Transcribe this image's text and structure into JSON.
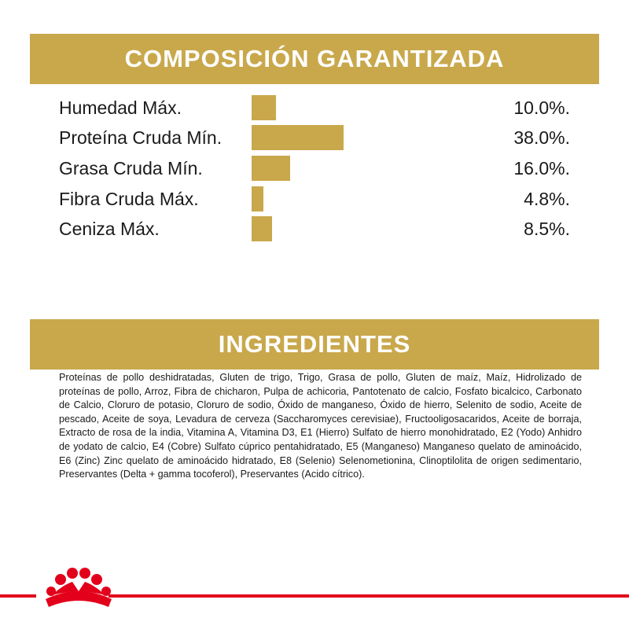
{
  "chart_data": {
    "type": "bar",
    "title": "COMPOSICIÓN GARANTIZADA",
    "categories": [
      "Humedad Máx.",
      "Proteína Cruda Mín.",
      "Grasa Cruda Mín.",
      "Fibra Cruda Máx.",
      "Ceniza Máx."
    ],
    "values": [
      10.0,
      38.0,
      16.0,
      4.8,
      8.5
    ],
    "value_labels": [
      "10.0%.",
      "38.0%.",
      "16.0%.",
      "4.8%.",
      "8.5%."
    ],
    "color": "#c9a84c"
  },
  "ingredients": {
    "title": "INGREDIENTES",
    "text": "Proteínas de pollo deshidratadas, Gluten de trigo, Trigo, Grasa de pollo, Gluten de maíz, Maíz, Hidrolizado de proteínas de pollo, Arroz, Fibra de chicharon, Pulpa de achicoria, Pantotenato de calcio, Fosfato bicalcico, Carbonato de Calcio, Cloruro de potasio, Cloruro de sodio, Óxido de manganeso, Óxido de hierro, Selenito de sodio, Aceite de pescado, Aceite de soya, Levadura de cerveza (Saccharomyces cerevisiae), Fructooligosacaridos, Aceite de borraja, Extracto de rosa de la india, Vitamina A, Vitamina D3, E1 (Hierro) Sulfato de hierro monohidratado, E2 (Yodo) Anhidro de yodato de calcio, E4 (Cobre) Sulfato cúprico pentahidratado, E5 (Manganeso) Manganeso quelato de aminoácido, E6 (Zinc) Zinc quelato de aminoácido hidratado, E8 (Selenio) Selenometionina, Clinoptilolita de origen sedimentario, Preservantes (Delta + gamma tocoferol), Preservantes (Acido cítrico)."
  }
}
